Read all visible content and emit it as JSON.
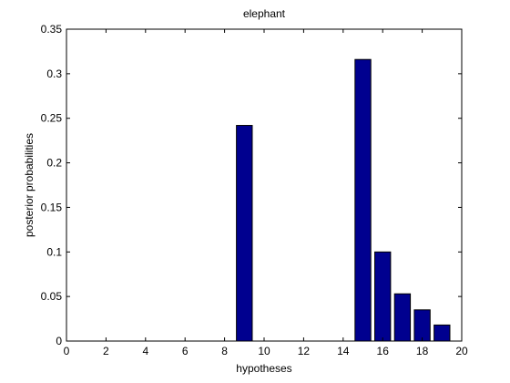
{
  "chart_data": {
    "type": "bar",
    "title": "elephant",
    "xlabel": "hypotheses",
    "ylabel": "posterior probabilities",
    "xlim": [
      0,
      20
    ],
    "ylim": [
      0,
      0.35
    ],
    "xticks": [
      0,
      2,
      4,
      6,
      8,
      10,
      12,
      14,
      16,
      18,
      20
    ],
    "yticks": [
      0,
      0.05,
      0.1,
      0.15,
      0.2,
      0.25,
      0.3,
      0.35
    ],
    "xtick_labels": [
      "0",
      "2",
      "4",
      "6",
      "8",
      "10",
      "12",
      "14",
      "16",
      "18",
      "20"
    ],
    "ytick_labels": [
      "0",
      "0.05",
      "0.1",
      "0.15",
      "0.2",
      "0.25",
      "0.3",
      "0.35"
    ],
    "bar_color": "#00008f",
    "bar_width": 0.8,
    "grid": false,
    "legend": "none",
    "x": [
      9,
      15,
      16,
      17,
      18,
      19
    ],
    "values": [
      0.242,
      0.316,
      0.1,
      0.053,
      0.035,
      0.018
    ]
  }
}
